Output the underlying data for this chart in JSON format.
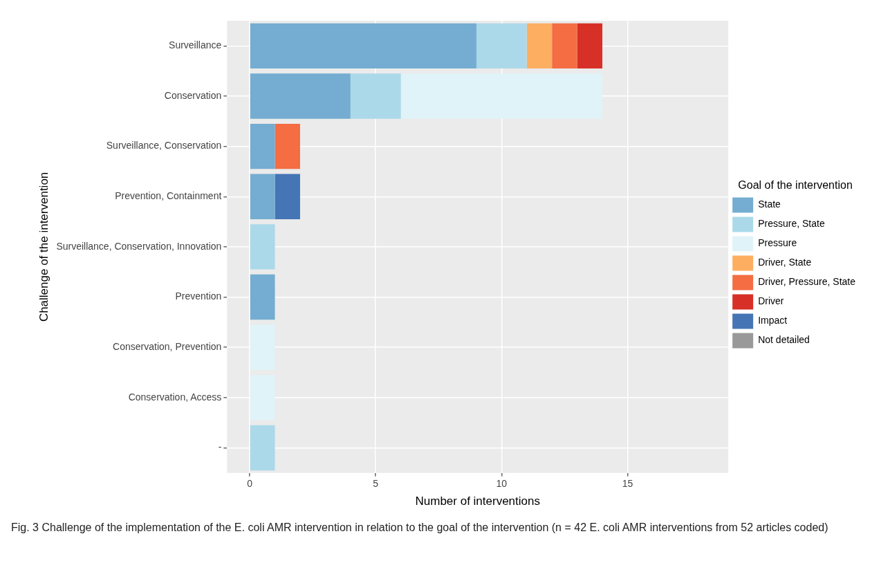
{
  "chart_data": {
    "type": "bar",
    "orientation": "horizontal",
    "stacked": true,
    "categories": [
      "Surveillance",
      "Conservation",
      "Surveillance, Conservation",
      "Prevention, Containment",
      "Surveillance, Conservation, Innovation",
      "Prevention",
      "Conservation, Prevention",
      "Conservation, Access",
      "-"
    ],
    "series": [
      {
        "name": "State",
        "color": "#74add1",
        "values": [
          9,
          4,
          1,
          1,
          0,
          1,
          0,
          0,
          0
        ]
      },
      {
        "name": "Pressure, State",
        "color": "#abd9e9",
        "values": [
          2,
          2,
          0,
          0,
          1,
          0,
          0,
          0,
          1
        ]
      },
      {
        "name": "Pressure",
        "color": "#e0f3f8",
        "values": [
          0,
          8,
          0,
          0,
          0,
          0,
          1,
          1,
          0
        ]
      },
      {
        "name": "Driver, State",
        "color": "#fdae61",
        "values": [
          1,
          0,
          0,
          0,
          0,
          0,
          0,
          0,
          0
        ]
      },
      {
        "name": "Driver, Pressure, State",
        "color": "#f46d43",
        "values": [
          1,
          0,
          1,
          0,
          0,
          0,
          0,
          0,
          0
        ]
      },
      {
        "name": "Driver",
        "color": "#d73027",
        "values": [
          1,
          0,
          0,
          0,
          0,
          0,
          0,
          0,
          0
        ]
      },
      {
        "name": "Impact",
        "color": "#4575b4",
        "values": [
          0,
          0,
          0,
          1,
          0,
          0,
          0,
          0,
          0
        ]
      },
      {
        "name": "Not detailed",
        "color": "#999999",
        "values": [
          0,
          0,
          0,
          0,
          0,
          0,
          0,
          0,
          0
        ]
      }
    ],
    "xlim": [
      -0.9,
      19
    ],
    "xticks": [
      0,
      5,
      10,
      15
    ],
    "xlabel": "Number of interventions",
    "ylabel": "Challenge of the intervention",
    "legend_title": "Goal of the intervention",
    "legend": "right",
    "grid": true,
    "annotations": [
      "Fig. 3 Challenge of the implementation of the E. coli AMR intervention in relation to the goal of the intervention (n = 42 E. coli AMR interventions from 52 articles coded)"
    ]
  }
}
